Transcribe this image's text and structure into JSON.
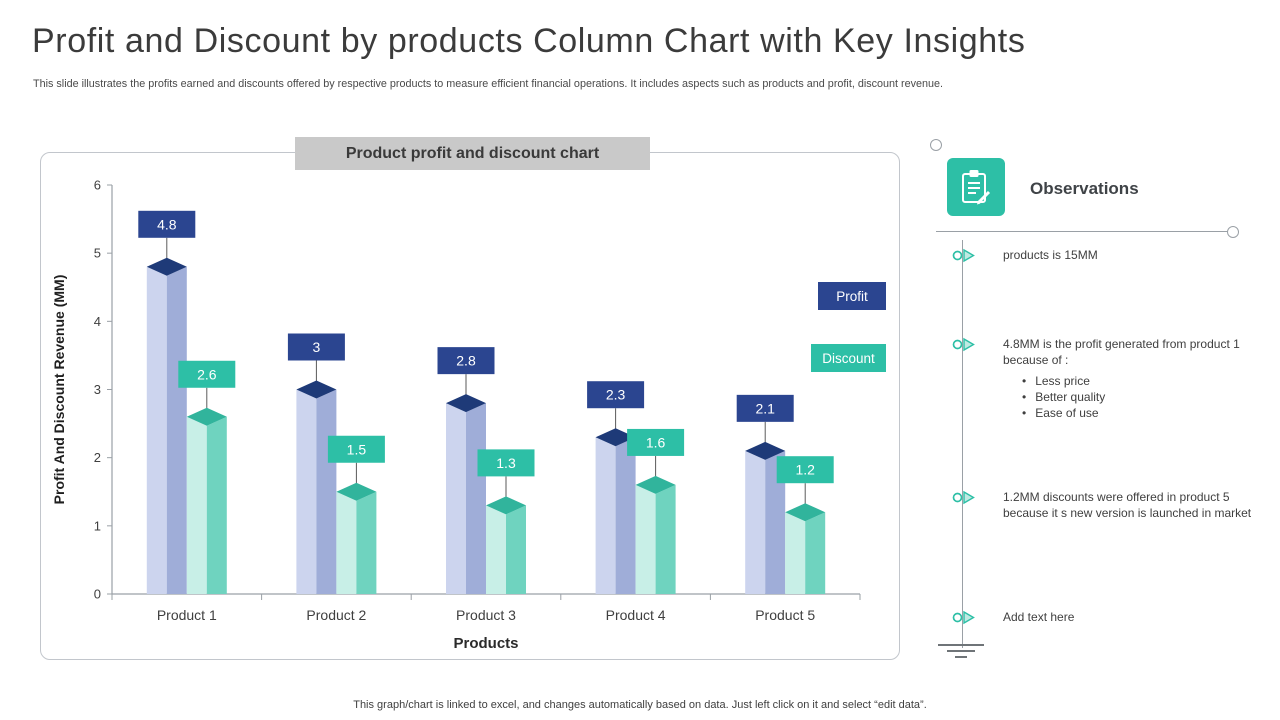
{
  "header": {
    "title": "Profit and Discount by products Column Chart with Key Insights",
    "subtitle": "This slide illustrates the profits earned and discounts offered by respective products to measure efficient financial operations. It includes aspects such as products and profit, discount revenue."
  },
  "chart": {
    "title_box": "Product profit and discount chart"
  },
  "chart_data": {
    "type": "bar",
    "title": "Product profit and discount chart",
    "categories": [
      "Product 1",
      "Product 2",
      "Product 3",
      "Product 4",
      "Product 5"
    ],
    "series": [
      {
        "name": "Profit",
        "values": [
          4.8,
          3,
          2.8,
          2.3,
          2.1
        ],
        "color": "#2b4590",
        "face_light": "#ccd4ee",
        "face_dark": "#9fadd8",
        "top": "#1e3a78"
      },
      {
        "name": "Discount",
        "values": [
          2.6,
          1.5,
          1.3,
          1.6,
          1.2
        ],
        "color": "#2dbfa6",
        "face_light": "#c8efe7",
        "face_dark": "#6fd3bf",
        "top": "#31b49c"
      }
    ],
    "xlabel": "Products",
    "ylabel": "Profit And Discount Revenue (MM)",
    "ylim": [
      0,
      6
    ],
    "yticks": [
      0,
      1,
      2,
      3,
      4,
      5,
      6
    ],
    "grid": false,
    "legend_position": "right",
    "labels_style": "boxed values above columns"
  },
  "observations": {
    "heading": "Observations",
    "items": [
      {
        "text": "products is 15MM"
      },
      {
        "text": "4.8MM is the profit generated from product 1 because of :",
        "bullets": [
          "Less price",
          "Better quality",
          "Ease of use"
        ]
      },
      {
        "text": "1.2MM discounts were offered in product 5 because it s new version is launched in market"
      },
      {
        "text": "Add text here"
      }
    ]
  },
  "footer": {
    "note": "This graph/chart is linked to excel, and changes automatically based on data. Just left click on it and select “edit data”."
  },
  "colors": {
    "profit": "#2b4590",
    "discount": "#2dbfa6",
    "title_box_bg": "#c9c9c9",
    "accent_teal": "#2dbfa6"
  }
}
